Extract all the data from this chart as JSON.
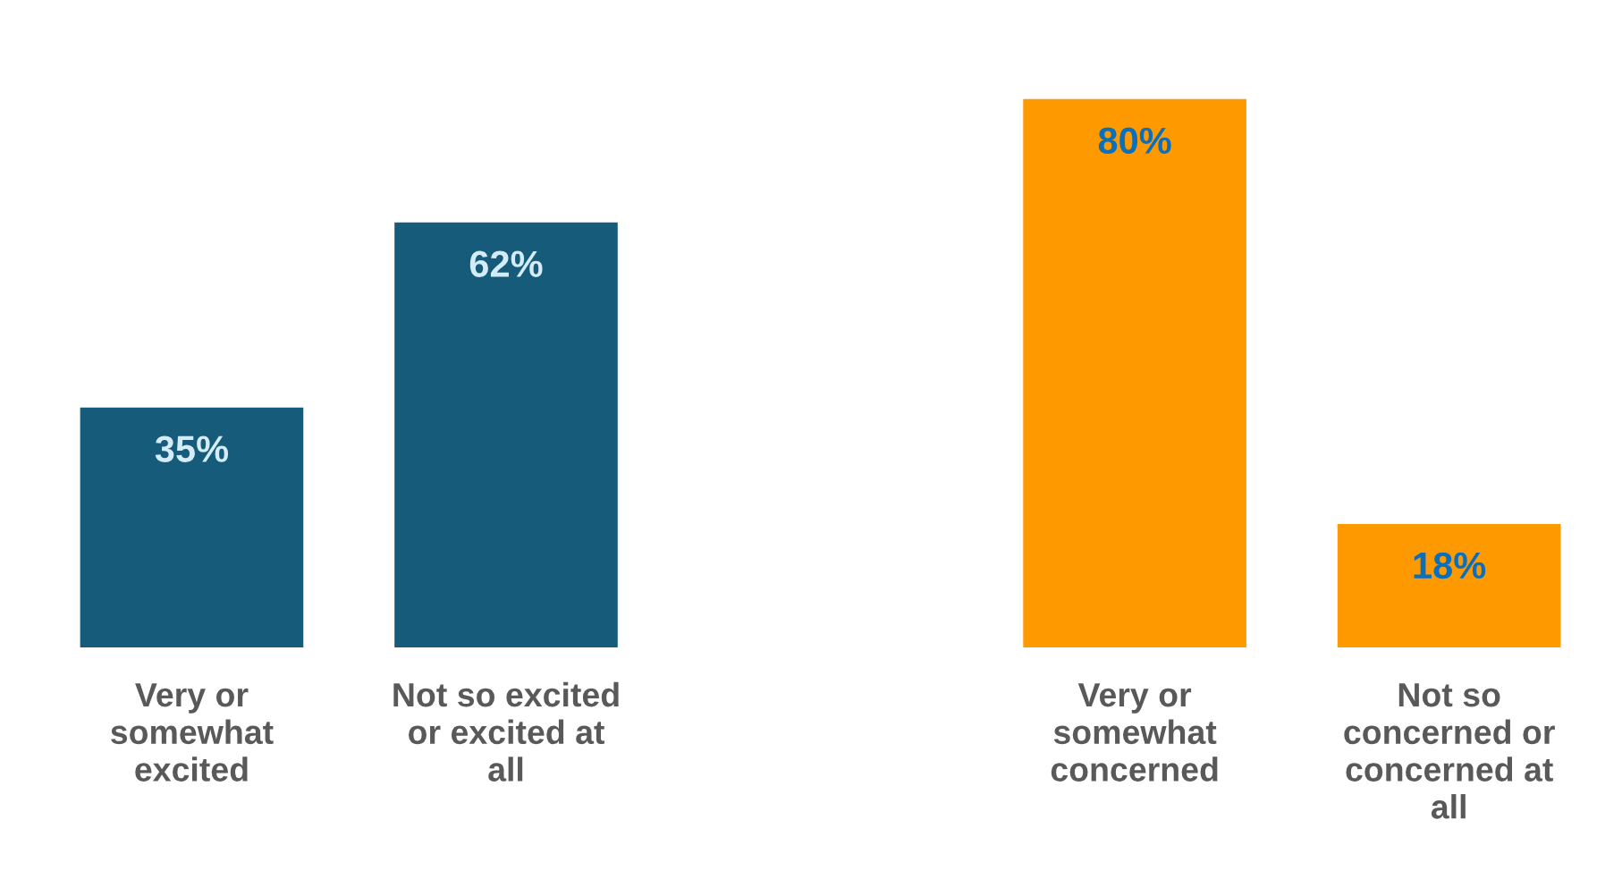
{
  "chart_data": {
    "type": "bar",
    "categories": [
      "Very or somewhat excited",
      "Not so excited or excited at all",
      null,
      "Very or somewhat concerned",
      "Not so concerned or concerned at all"
    ],
    "values": [
      35,
      62,
      null,
      80,
      18
    ],
    "colors": [
      "#165b7a",
      "#165b7a",
      "#ffffff",
      "#ff9900",
      "#ff9900"
    ],
    "value_labels": [
      "35%",
      "62%",
      null,
      "80%",
      "18%"
    ],
    "grid": false
  }
}
